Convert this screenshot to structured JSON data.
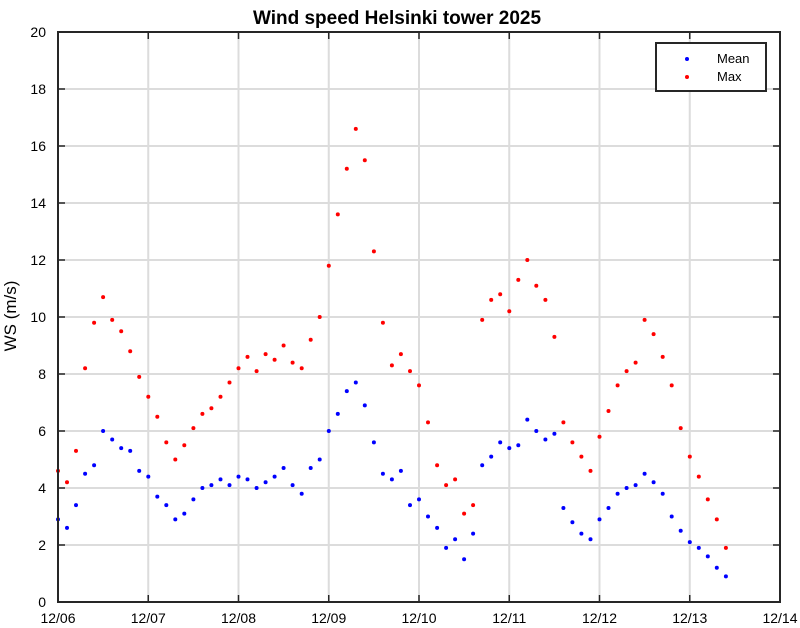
{
  "chart_data": {
    "type": "scatter",
    "title": "Wind speed Helsinki tower 2025",
    "xlabel": "",
    "ylabel": "WS (m/s)",
    "xlim": [
      0,
      8
    ],
    "ylim": [
      0,
      20
    ],
    "xtick_values": [
      0,
      1,
      2,
      3,
      4,
      5,
      6,
      7,
      8
    ],
    "xtick_labels": [
      "12/06",
      "12/07",
      "12/08",
      "12/09",
      "12/10",
      "12/11",
      "12/12",
      "12/13",
      "12/14"
    ],
    "ytick_values": [
      0,
      2,
      4,
      6,
      8,
      10,
      12,
      14,
      16,
      18,
      20
    ],
    "ytick_labels": [
      "0",
      "2",
      "4",
      "6",
      "8",
      "10",
      "12",
      "14",
      "16",
      "18",
      "20"
    ],
    "grid": true,
    "legend_position": "top-right",
    "x_units": "days since 12/06 00:00",
    "series": [
      {
        "name": "Mean",
        "color": "#0000ff",
        "x": [
          0.0,
          0.1,
          0.2,
          0.3,
          0.4,
          0.5,
          0.6,
          0.7,
          0.8,
          0.9,
          1.0,
          1.1,
          1.2,
          1.3,
          1.4,
          1.5,
          1.6,
          1.7,
          1.8,
          1.9,
          2.0,
          2.1,
          2.2,
          2.3,
          2.4,
          2.5,
          2.6,
          2.7,
          2.8,
          2.9,
          3.0,
          3.1,
          3.2,
          3.3,
          3.4,
          3.5,
          3.6,
          3.7,
          3.8,
          3.9,
          4.0,
          4.1,
          4.2,
          4.3,
          4.4,
          4.5,
          4.6,
          4.7,
          4.8,
          4.9,
          5.0,
          5.1,
          5.2,
          5.3,
          5.4,
          5.5,
          5.6,
          5.7,
          5.8,
          5.9,
          6.0,
          6.1,
          6.2,
          6.3,
          6.4,
          6.5,
          6.6,
          6.7,
          6.8,
          6.9,
          7.0,
          7.1,
          7.2,
          7.3,
          7.4
        ],
        "y": [
          2.9,
          2.6,
          3.4,
          4.5,
          4.8,
          6.0,
          5.7,
          5.4,
          5.3,
          4.6,
          4.4,
          3.7,
          3.4,
          2.9,
          3.1,
          3.6,
          4.0,
          4.1,
          4.3,
          4.1,
          4.4,
          4.3,
          4.0,
          4.2,
          4.4,
          4.7,
          4.1,
          3.8,
          4.7,
          5.0,
          6.0,
          6.6,
          7.4,
          7.7,
          6.9,
          5.6,
          4.5,
          4.3,
          4.6,
          3.4,
          3.6,
          3.0,
          2.6,
          1.9,
          2.2,
          1.5,
          2.4,
          4.8,
          5.1,
          5.6,
          5.4,
          5.5,
          6.4,
          6.0,
          5.7,
          5.9,
          3.3,
          2.8,
          2.4,
          2.2,
          2.9,
          3.3,
          3.8,
          4.0,
          4.1,
          4.5,
          4.2,
          3.8,
          3.0,
          2.5,
          2.1,
          1.9,
          1.6,
          1.2,
          0.9
        ]
      },
      {
        "name": "Max",
        "color": "#ff0000",
        "x": [
          0.0,
          0.1,
          0.2,
          0.3,
          0.4,
          0.5,
          0.6,
          0.7,
          0.8,
          0.9,
          1.0,
          1.1,
          1.2,
          1.3,
          1.4,
          1.5,
          1.6,
          1.7,
          1.8,
          1.9,
          2.0,
          2.1,
          2.2,
          2.3,
          2.4,
          2.5,
          2.6,
          2.7,
          2.8,
          2.9,
          3.0,
          3.1,
          3.2,
          3.3,
          3.4,
          3.5,
          3.6,
          3.7,
          3.8,
          3.9,
          4.0,
          4.1,
          4.2,
          4.3,
          4.4,
          4.5,
          4.6,
          4.7,
          4.8,
          4.9,
          5.0,
          5.1,
          5.2,
          5.3,
          5.4,
          5.5,
          5.6,
          5.7,
          5.8,
          5.9,
          6.0,
          6.1,
          6.2,
          6.3,
          6.4,
          6.5,
          6.6,
          6.7,
          6.8,
          6.9,
          7.0,
          7.1,
          7.2,
          7.3,
          7.4
        ],
        "y": [
          4.6,
          4.2,
          5.3,
          8.2,
          9.8,
          10.7,
          9.9,
          9.5,
          8.8,
          7.9,
          7.2,
          6.5,
          5.6,
          5.0,
          5.5,
          6.1,
          6.6,
          6.8,
          7.2,
          7.7,
          8.2,
          8.6,
          8.1,
          8.7,
          8.5,
          9.0,
          8.4,
          8.2,
          9.2,
          10.0,
          11.8,
          13.6,
          15.2,
          16.6,
          15.5,
          12.3,
          9.8,
          8.3,
          8.7,
          8.1,
          7.6,
          6.3,
          4.8,
          4.1,
          4.3,
          3.1,
          3.4,
          9.9,
          10.6,
          10.8,
          10.2,
          11.3,
          12.0,
          11.1,
          10.6,
          9.3,
          6.3,
          5.6,
          5.1,
          4.6,
          5.8,
          6.7,
          7.6,
          8.1,
          8.4,
          9.9,
          9.4,
          8.6,
          7.6,
          6.1,
          5.1,
          4.4,
          3.6,
          2.9,
          1.9
        ]
      }
    ]
  }
}
